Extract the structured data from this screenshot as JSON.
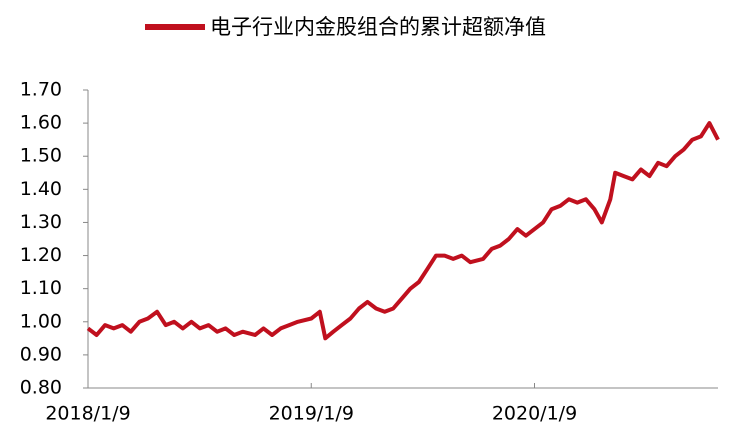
{
  "chart_data": {
    "type": "line",
    "x": [
      "2018/1/9",
      "2018/1/23",
      "2018/2/6",
      "2018/2/20",
      "2018/3/6",
      "2018/3/20",
      "2018/4/3",
      "2018/4/17",
      "2018/5/2",
      "2018/5/16",
      "2018/5/30",
      "2018/6/13",
      "2018/6/27",
      "2018/7/11",
      "2018/7/25",
      "2018/8/8",
      "2018/8/22",
      "2018/9/5",
      "2018/9/19",
      "2018/10/9",
      "2018/10/23",
      "2018/11/6",
      "2018/11/20",
      "2018/12/4",
      "2018/12/18",
      "2019/1/9",
      "2019/1/23",
      "2019/2/1",
      "2019/2/14",
      "2019/2/28",
      "2019/3/14",
      "2019/3/28",
      "2019/4/11",
      "2019/4/25",
      "2019/5/9",
      "2019/5/23",
      "2019/6/6",
      "2019/6/20",
      "2019/7/4",
      "2019/7/18",
      "2019/8/1",
      "2019/8/15",
      "2019/8/29",
      "2019/9/12",
      "2019/9/26",
      "2019/10/17",
      "2019/10/31",
      "2019/11/14",
      "2019/11/28",
      "2019/12/12",
      "2019/12/26",
      "2020/1/9",
      "2020/1/23",
      "2020/2/6",
      "2020/2/20",
      "2020/3/5",
      "2020/3/19",
      "2020/4/2",
      "2020/4/16",
      "2020/4/28",
      "2020/5/12",
      "2020/5/20",
      "2020/6/3",
      "2020/6/17",
      "2020/7/1",
      "2020/7/15",
      "2020/7/29",
      "2020/8/12",
      "2020/8/26",
      "2020/9/9",
      "2020/9/23",
      "2020/10/7",
      "2020/10/21",
      "2020/11/4"
    ],
    "series": [
      {
        "name": "电子行业内金股组合的累计超额净值",
        "color": "#c0101e",
        "values": [
          0.98,
          0.96,
          0.99,
          0.98,
          0.99,
          0.97,
          1.0,
          1.01,
          1.03,
          0.99,
          1.0,
          0.98,
          1.0,
          0.98,
          0.99,
          0.97,
          0.98,
          0.96,
          0.97,
          0.96,
          0.98,
          0.96,
          0.98,
          0.99,
          1.0,
          1.01,
          1.03,
          0.95,
          0.97,
          0.99,
          1.01,
          1.04,
          1.06,
          1.04,
          1.03,
          1.04,
          1.07,
          1.1,
          1.12,
          1.16,
          1.2,
          1.2,
          1.19,
          1.2,
          1.18,
          1.19,
          1.22,
          1.23,
          1.25,
          1.28,
          1.26,
          1.28,
          1.3,
          1.34,
          1.35,
          1.37,
          1.36,
          1.37,
          1.34,
          1.3,
          1.37,
          1.45,
          1.44,
          1.43,
          1.46,
          1.44,
          1.48,
          1.47,
          1.5,
          1.52,
          1.55,
          1.56,
          1.6,
          1.55
        ]
      }
    ],
    "xlim": [
      "2018/1/9",
      "2020/11/4"
    ],
    "xticks": [
      "2018/1/9",
      "2019/1/9",
      "2020/1/9"
    ],
    "ylim": [
      0.8,
      1.7
    ],
    "yticks": [
      {
        "value": 0.8,
        "label": "0.80"
      },
      {
        "value": 0.9,
        "label": "0.90"
      },
      {
        "value": 1.0,
        "label": "1.00"
      },
      {
        "value": 1.1,
        "label": "1.10"
      },
      {
        "value": 1.2,
        "label": "1.20"
      },
      {
        "value": 1.3,
        "label": "1.30"
      },
      {
        "value": 1.4,
        "label": "1.40"
      },
      {
        "value": 1.5,
        "label": "1.50"
      },
      {
        "value": 1.6,
        "label": "1.60"
      },
      {
        "value": 1.7,
        "label": "1.70"
      }
    ],
    "grid": false,
    "legend": "top"
  }
}
